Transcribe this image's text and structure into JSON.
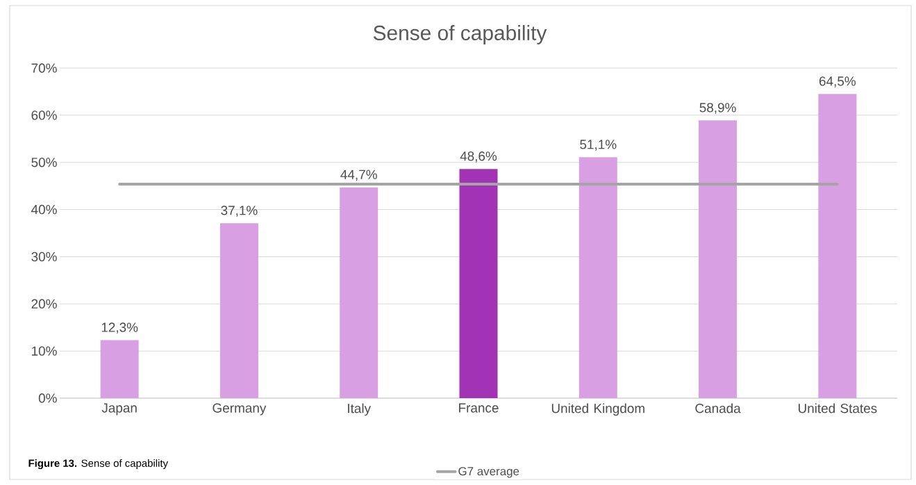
{
  "chart_data": {
    "type": "bar",
    "title": "Sense of capability",
    "categories": [
      "Japan",
      "Germany",
      "Italy",
      "France",
      "United Kingdom",
      "Canada",
      "United States"
    ],
    "series": [
      {
        "values": [
          12.3,
          37.1,
          44.7,
          48.6,
          51.1,
          58.9,
          64.5
        ],
        "colors": [
          "#d99fe3",
          "#d99fe3",
          "#d99fe3",
          "#a233b5",
          "#d99fe3",
          "#d99fe3",
          "#d99fe3"
        ],
        "value_labels": [
          "12,3%",
          "37,1%",
          "44,7%",
          "48,6%",
          "51,1%",
          "58,9%",
          "64,5%"
        ]
      },
      {
        "type": "line",
        "name": "G7 average",
        "color": "#a5a5a5",
        "values": [
          45.4,
          45.4,
          45.4,
          45.4,
          45.4,
          45.4,
          45.4
        ],
        "marker": "none"
      }
    ],
    "ylim": [
      0,
      70
    ],
    "yticks": [
      {
        "value": 0,
        "label": "0%"
      },
      {
        "value": 10,
        "label": "10%"
      },
      {
        "value": 20,
        "label": "20%"
      },
      {
        "value": 30,
        "label": "30%"
      },
      {
        "value": 40,
        "label": "40%"
      },
      {
        "value": 50,
        "label": "50%"
      },
      {
        "value": 60,
        "label": "60%"
      },
      {
        "value": 70,
        "label": "70%"
      }
    ],
    "grid": "y",
    "legend": "bottom",
    "annotations": [
      "**Figure 13.** Sense of capability"
    ]
  }
}
